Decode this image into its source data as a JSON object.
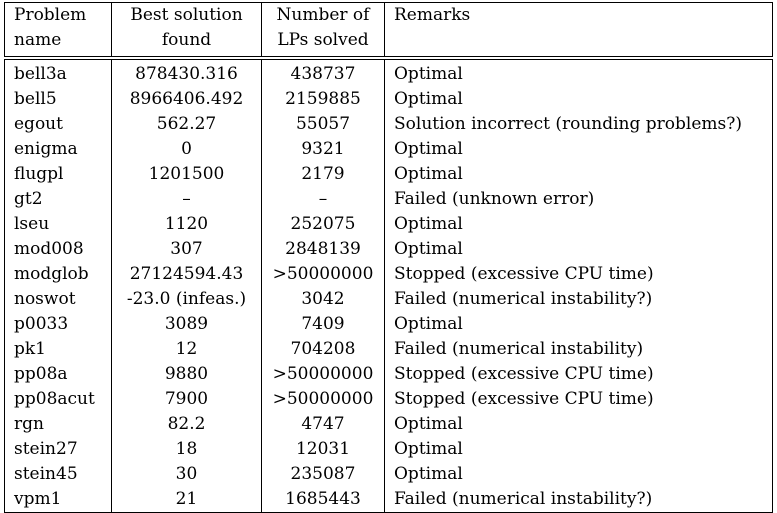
{
  "table": {
    "headers": {
      "problem": [
        "Problem",
        "name"
      ],
      "best": [
        "Best solution",
        "found"
      ],
      "lps": [
        "Number of",
        "LPs solved"
      ],
      "remarks": [
        "Remarks"
      ]
    },
    "rows": [
      {
        "name": "bell3a",
        "best": "878430.316",
        "lps": "438737",
        "remark": "Optimal"
      },
      {
        "name": "bell5",
        "best": "8966406.492",
        "lps": "2159885",
        "remark": "Optimal"
      },
      {
        "name": "egout",
        "best": "562.27",
        "lps": "55057",
        "remark": "Solution incorrect (rounding problems?)"
      },
      {
        "name": "enigma",
        "best": "0",
        "lps": "9321",
        "remark": "Optimal"
      },
      {
        "name": "flugpl",
        "best": "1201500",
        "lps": "2179",
        "remark": "Optimal"
      },
      {
        "name": "gt2",
        "best": "–",
        "lps": "–",
        "remark": "Failed (unknown error)"
      },
      {
        "name": "lseu",
        "best": "1120",
        "lps": "252075",
        "remark": "Optimal"
      },
      {
        "name": "mod008",
        "best": "307",
        "lps": "2848139",
        "remark": "Optimal"
      },
      {
        "name": "modglob",
        "best": "27124594.43",
        "lps": ">50000000",
        "remark": "Stopped (excessive CPU time)"
      },
      {
        "name": "noswot",
        "best": "-23.0 (infeas.)",
        "lps": "3042",
        "remark": "Failed (numerical instability?)"
      },
      {
        "name": "p0033",
        "best": "3089",
        "lps": "7409",
        "remark": "Optimal"
      },
      {
        "name": "pk1",
        "best": "12",
        "lps": "704208",
        "remark": "Failed (numerical instability)"
      },
      {
        "name": "pp08a",
        "best": "9880",
        "lps": ">50000000",
        "remark": "Stopped (excessive CPU time)"
      },
      {
        "name": "pp08acut",
        "best": "7900",
        "lps": ">50000000",
        "remark": "Stopped (excessive CPU time)"
      },
      {
        "name": "rgn",
        "best": "82.2",
        "lps": "4747",
        "remark": "Optimal"
      },
      {
        "name": "stein27",
        "best": "18",
        "lps": "12031",
        "remark": "Optimal"
      },
      {
        "name": "stein45",
        "best": "30",
        "lps": "235087",
        "remark": "Optimal"
      },
      {
        "name": "vpm1",
        "best": "21",
        "lps": "1685443",
        "remark": "Failed (numerical instability?)"
      }
    ]
  }
}
